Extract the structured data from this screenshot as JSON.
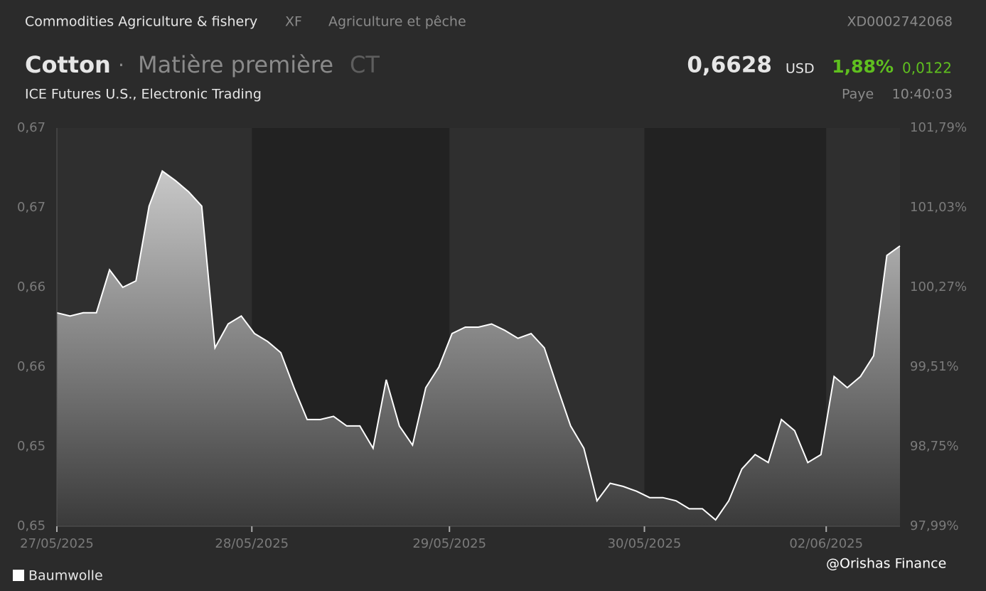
{
  "header": {
    "breadcrumb": "Commodities Agriculture & fishery",
    "exchange_code": "XF",
    "category": "Agriculture et pêche",
    "isin": "XD0002742068",
    "name": "Cotton",
    "separator": "·",
    "asset_type": "Matière première",
    "symbol": "CT",
    "price": "0,6628",
    "currency": "USD",
    "change_pct": "1,88%",
    "change_abs": "0,0122",
    "market": "ICE Futures U.S., Electronic Trading",
    "status": "Paye",
    "time": "10:40:03"
  },
  "watermark": "@Orishas Finance",
  "chart_data": {
    "type": "area",
    "xlim": [
      0,
      64
    ],
    "xticks": [
      {
        "value": 0,
        "label": "27/05/2025"
      },
      {
        "value": 14.8,
        "label": "28/05/2025"
      },
      {
        "value": 29.8,
        "label": "29/05/2025"
      },
      {
        "value": 44.6,
        "label": "30/05/2025"
      },
      {
        "value": 58.4,
        "label": "02/06/2025"
      }
    ],
    "ylim": [
      0.6452,
      0.6702
    ],
    "yticks": [
      {
        "value": 0.6452,
        "label": "0,65"
      },
      {
        "value": 0.6502,
        "label": "0,65"
      },
      {
        "value": 0.6552,
        "label": "0,66"
      },
      {
        "value": 0.6602,
        "label": "0,66"
      },
      {
        "value": 0.6652,
        "label": "0,67"
      },
      {
        "value": 0.6702,
        "label": "0,67"
      }
    ],
    "y2lim": [
      97.99,
      101.79
    ],
    "y2ticks": [
      {
        "value": 97.99,
        "label": "97,99%"
      },
      {
        "value": 98.75,
        "label": "98,75%"
      },
      {
        "value": 99.51,
        "label": "99,51%"
      },
      {
        "value": 100.27,
        "label": "100,27%"
      },
      {
        "value": 101.03,
        "label": "101,03%"
      },
      {
        "value": 101.79,
        "label": "101,79%"
      }
    ],
    "legend": "bottom-left",
    "series": [
      {
        "name": "Baumwolle",
        "color": "#ffffff",
        "values": [
          0.6586,
          0.6584,
          0.6586,
          0.6586,
          0.6613,
          0.6602,
          0.6606,
          0.6653,
          0.6675,
          0.6669,
          0.6662,
          0.6653,
          0.6564,
          0.6579,
          0.6584,
          0.6573,
          0.6568,
          0.6561,
          0.6539,
          0.6519,
          0.6519,
          0.6521,
          0.6515,
          0.6515,
          0.6501,
          0.6544,
          0.6515,
          0.6503,
          0.6539,
          0.6552,
          0.6573,
          0.6577,
          0.6577,
          0.6579,
          0.6575,
          0.657,
          0.6573,
          0.6564,
          0.6539,
          0.6515,
          0.6501,
          0.6468,
          0.6479,
          0.6477,
          0.6474,
          0.647,
          0.647,
          0.6468,
          0.6463,
          0.6463,
          0.6456,
          0.6468,
          0.6488,
          0.6497,
          0.6492,
          0.6519,
          0.6512,
          0.6492,
          0.6497,
          0.6546,
          0.6539,
          0.6546,
          0.6559,
          0.6622,
          0.6628
        ]
      }
    ]
  }
}
